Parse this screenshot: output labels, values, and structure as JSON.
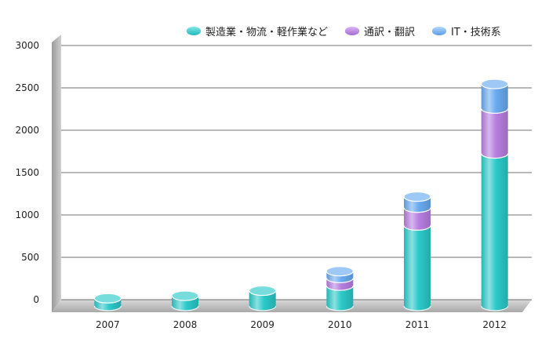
{
  "chart_data": {
    "type": "bar",
    "stacked": true,
    "style": "3d-cylinder",
    "categories": [
      "2007",
      "2008",
      "2009",
      "2010",
      "2011",
      "2012"
    ],
    "series": [
      {
        "name": "製造業・物流・軽作業など",
        "color": "#2cc9c9",
        "values": [
          90,
          120,
          180,
          240,
          950,
          1800
        ]
      },
      {
        "name": "通訳・翻訳",
        "color": "#b77ee0",
        "values": [
          0,
          0,
          0,
          90,
          210,
          530
        ]
      },
      {
        "name": "IT・技術系",
        "color": "#6aaaf0",
        "values": [
          0,
          0,
          0,
          80,
          130,
          290
        ]
      }
    ],
    "ylim": [
      0,
      3000
    ],
    "yticks": [
      0,
      500,
      1000,
      1500,
      2000,
      2500,
      3000
    ],
    "grid": true,
    "legend_position": "top-right"
  }
}
